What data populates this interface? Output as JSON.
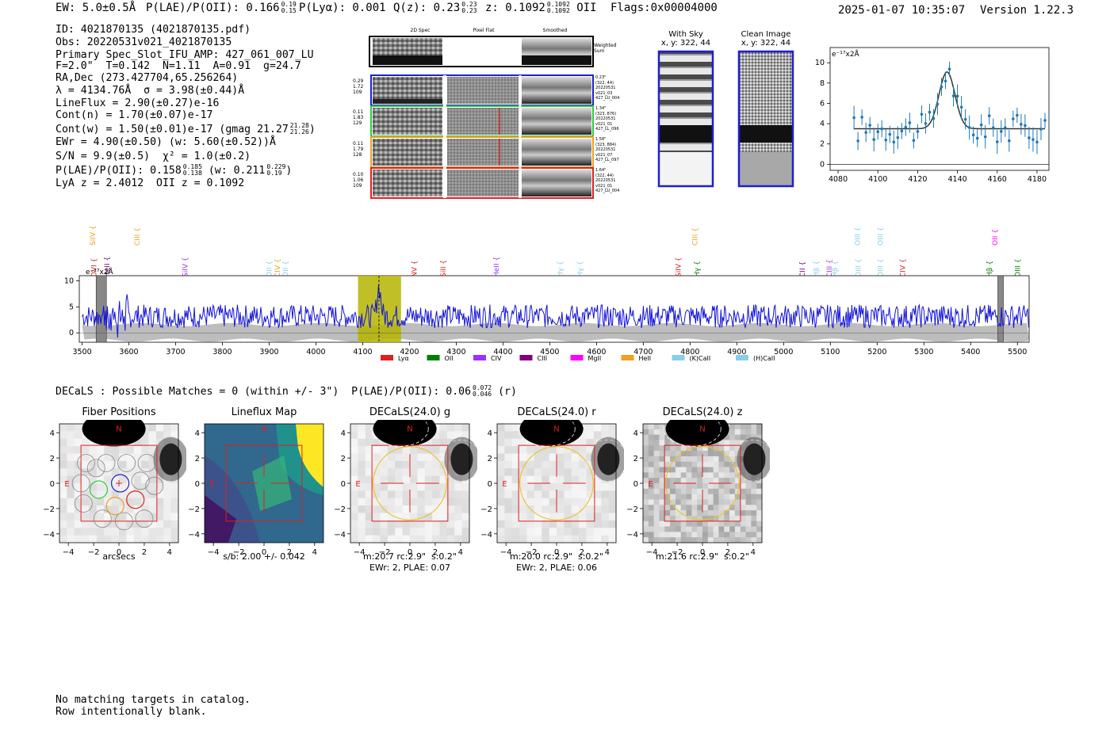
{
  "header": {
    "ew": "EW: 5.0±0.5Å",
    "plae_label": "P(LAE)/P(OII): 0.166",
    "plae_hi": "0.19",
    "plae_lo": "0.15",
    "plya": "P(Lyα): 0.001",
    "qz_label": "Q(z): 0.23",
    "qz_hi": "0.23",
    "qz_lo": "0.23",
    "z_label": "z: 0.1092",
    "z_hi": "0.1092",
    "z_lo": "0.1092",
    "z_line": "OII",
    "flags": "Flags:0x00004000",
    "datetime": "2025-01-07 10:35:07",
    "version": "Version 1.22.3"
  },
  "info": {
    "id": "ID: 4021870135 (4021870135.pdf)",
    "obs": "Obs: 20220531v021_4021870135",
    "primary": "Primary Spec_Slot_IFU_AMP: 427_061_007_LU",
    "params": "F=2.0\"  T=0.142  N=1.11  A=0.91  g=24.7",
    "radec": "RA,Dec (273.427704,65.256264)",
    "lambda": "λ = 4134.76Å  σ = 3.98(±0.44)Å",
    "lineflux": "LineFlux = 2.90(±0.27)e-16",
    "contn": "Cont(n) = 1.70(±0.07)e-17",
    "contw": "Cont(w) = 1.50(±0.01)e-17 (gmag 21.27",
    "contw_hi": "21.28",
    "contw_lo": "21.26",
    "contw_end": ")",
    "ewr": "EWr = 4.90(±0.50) (w: 5.60(±0.52))Å",
    "sn": "S/N = 9.9(±0.5)  χ² = 1.0(±0.2)",
    "plae": "P(LAE)/P(OII): 0.158",
    "plae_hi": "0.185",
    "plae_lo": "0.138",
    "plae_w": "(w: 0.211",
    "plae_w_hi": "0.229",
    "plae_w_lo": "0.19",
    "plae_w_end": ")",
    "lya": "LyA z = 2.4012  OII z = 0.1092"
  },
  "cutouts": {
    "col_2d": "2D Spec",
    "col_flat": "Pixel Flat",
    "col_smooth": "Smoothed",
    "weighted": "Weighted Sum",
    "rows": [
      {
        "left": [
          "0.29",
          "1.72",
          "109"
        ],
        "right": [
          "0.23\"",
          "(322, 44)",
          "20220531",
          "v021_03",
          "427_LU_004"
        ],
        "color": "#1f1fd0"
      },
      {
        "left": [
          "0.11",
          "1.83",
          "129"
        ],
        "right": [
          "1.34\"",
          "(323, 876)",
          "20220531",
          "v021_01",
          "427_LL_096"
        ],
        "color": "#2ecc40"
      },
      {
        "left": [
          "0.11",
          "1.79",
          "128"
        ],
        "right": [
          "1.58\"",
          "(323, 884)",
          "20220531",
          "v021_07",
          "427_LL_097"
        ],
        "color": "#f0a020"
      },
      {
        "left": [
          "0.10",
          "1.06",
          "109"
        ],
        "right": [
          "1.64\"",
          "(322, 44)",
          "20220531",
          "v021_01",
          "427_LU_004"
        ],
        "color": "#e02020"
      }
    ]
  },
  "sky": {
    "with_sky_title": "With Sky",
    "with_sky_xy": "x, y: 322, 44",
    "clean_title": "Clean Image",
    "clean_xy": "x, y: 322, 44"
  },
  "line_fit": {
    "unit_label": "e⁻¹⁷x2Å",
    "x_ticks": [
      "4080",
      "4100",
      "4120",
      "4140",
      "4160",
      "4180"
    ],
    "y_ticks": [
      "0",
      "2",
      "4",
      "6",
      "8",
      "10"
    ]
  },
  "spectrum": {
    "unit_label": "e⁻¹⁷x2Å",
    "x_ticks": [
      "3500",
      "3600",
      "3700",
      "3800",
      "3900",
      "4000",
      "4100",
      "4200",
      "4300",
      "4400",
      "4500",
      "4600",
      "4700",
      "4800",
      "4900",
      "5000",
      "5100",
      "5200",
      "5300",
      "5400",
      "5500"
    ],
    "y_ticks": [
      "10",
      "5",
      "0"
    ],
    "lines_upper": [
      {
        "label": "SiIV",
        "x": 3523,
        "color": "#f0a020"
      },
      {
        "label": "CIII",
        "x": 3618,
        "color": "#f0a020"
      },
      {
        "label": "CIII",
        "x": 4810,
        "color": "#f0a020"
      },
      {
        "label": "OIII",
        "x": 5158,
        "color": "#87ceeb"
      },
      {
        "label": "OIII",
        "x": 5207,
        "color": "#87ceeb"
      },
      {
        "label": "OII",
        "x": 5452,
        "color": "#ff00ff"
      }
    ],
    "lines_lower": [
      {
        "label": "OVI",
        "x": 3525,
        "color": "#e02020"
      },
      {
        "label": "HeII",
        "x": 3553,
        "color": "#800080"
      },
      {
        "label": "SiIV",
        "x": 3720,
        "color": "#9b30ff"
      },
      {
        "label": "OII",
        "x": 3900,
        "color": "#87ceeb"
      },
      {
        "label": "CIV",
        "x": 3918,
        "color": "#f0a020"
      },
      {
        "label": "OII",
        "x": 3935,
        "color": "#87ceeb"
      },
      {
        "label": "NV",
        "x": 4210,
        "color": "#e02020"
      },
      {
        "label": "SiII",
        "x": 4272,
        "color": "#e02020"
      },
      {
        "label": "HeII",
        "x": 4386,
        "color": "#9b30ff"
      },
      {
        "label": "Hγ",
        "x": 4522,
        "color": "#87ceeb"
      },
      {
        "label": "Hγ",
        "x": 4565,
        "color": "#87ceeb"
      },
      {
        "label": "SiIV",
        "x": 4775,
        "color": "#e02020"
      },
      {
        "label": "Hγ",
        "x": 4815,
        "color": "#008000"
      },
      {
        "label": "CII",
        "x": 5040,
        "color": "#800080"
      },
      {
        "label": "Hβ",
        "x": 5070,
        "color": "#87ceeb"
      },
      {
        "label": "CIII",
        "x": 5098,
        "color": "#9b30ff"
      },
      {
        "label": "Hβ",
        "x": 5110,
        "color": "#87ceeb"
      },
      {
        "label": "OIII",
        "x": 5160,
        "color": "#87ceeb"
      },
      {
        "label": "OIII",
        "x": 5207,
        "color": "#87ceeb"
      },
      {
        "label": "CIV",
        "x": 5255,
        "color": "#e02020"
      },
      {
        "label": "Hβ",
        "x": 5440,
        "color": "#008000"
      },
      {
        "label": "OIII",
        "x": 5500,
        "color": "#008000"
      }
    ],
    "legend": [
      {
        "label": "Lyα",
        "color": "#e02020"
      },
      {
        "label": "OII",
        "color": "#008000"
      },
      {
        "label": "CIV",
        "color": "#9b30ff"
      },
      {
        "label": "CIII",
        "color": "#800080"
      },
      {
        "label": "MgII",
        "color": "#ff00ff"
      },
      {
        "label": "HeII",
        "color": "#f0a020"
      },
      {
        "label": "(K)CaII",
        "color": "#87ceeb"
      },
      {
        "label": "(H)CaII",
        "color": "#87ceeb"
      }
    ]
  },
  "decals_header": {
    "text": "DECaLS : Possible Matches = 0 (within +/- 3\")  P(LAE)/P(OII): 0.06",
    "hi": "0.072",
    "lo": "0.046",
    "end": "(r)"
  },
  "panels": [
    {
      "title": "Fiber Positions",
      "caption1": "arcsecs",
      "caption2": ""
    },
    {
      "title": "Lineflux Map",
      "caption1": "s/b: 2.00 +/- 0.042",
      "caption2": ""
    },
    {
      "title": "DECaLS(24.0) g",
      "caption1": "m:20.7 rc:2.9\"  s:0.2\"",
      "caption2": "EWr: 2, PLAE: 0.07"
    },
    {
      "title": "DECaLS(24.0) r",
      "caption1": "m:20.0 rc:2.9\"  s:0.2\"",
      "caption2": "EWr: 2, PLAE: 0.06"
    },
    {
      "title": "DECaLS(24.0) z",
      "caption1": "m:21.6 rc:2.9\"  s:0.2\"",
      "caption2": ""
    }
  ],
  "panel_axis": {
    "ticks": [
      "−4",
      "−2",
      "0",
      "2",
      "4"
    ],
    "yticks": [
      "4",
      "2",
      "0",
      "−2",
      "−4"
    ],
    "north": "N",
    "east": "E"
  },
  "footer": {
    "line1": "No matching targets in catalog.",
    "line2": "Row intentionally blank."
  }
}
